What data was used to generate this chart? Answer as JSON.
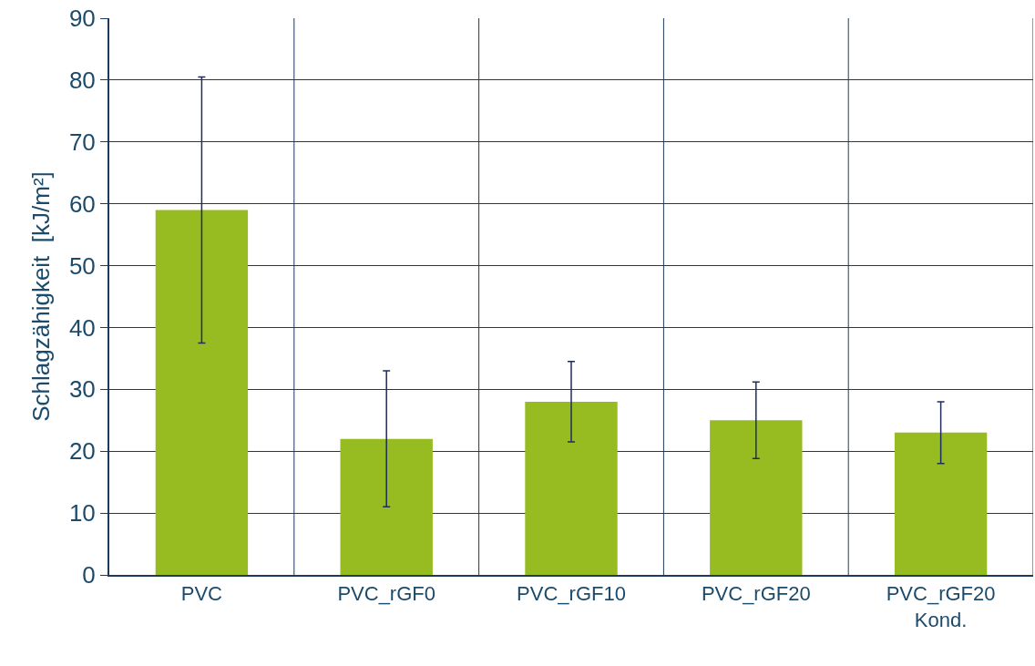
{
  "chart_data": {
    "type": "bar",
    "ylabel": "Schlagzähigkeit  [kJ/m²]",
    "categories": [
      "PVC",
      "PVC_rGF0",
      "PVC_rGF10",
      "PVC_rGF20",
      "PVC_rGF20 Kond."
    ],
    "values": [
      59,
      22,
      28,
      25,
      23
    ],
    "errors": [
      21.5,
      11,
      6.5,
      6.2,
      5
    ],
    "color": "#96bc22",
    "ylim": [
      0,
      90
    ],
    "yticks": [
      0,
      10,
      20,
      30,
      40,
      50,
      60,
      70,
      80,
      90
    ],
    "grid": true
  }
}
